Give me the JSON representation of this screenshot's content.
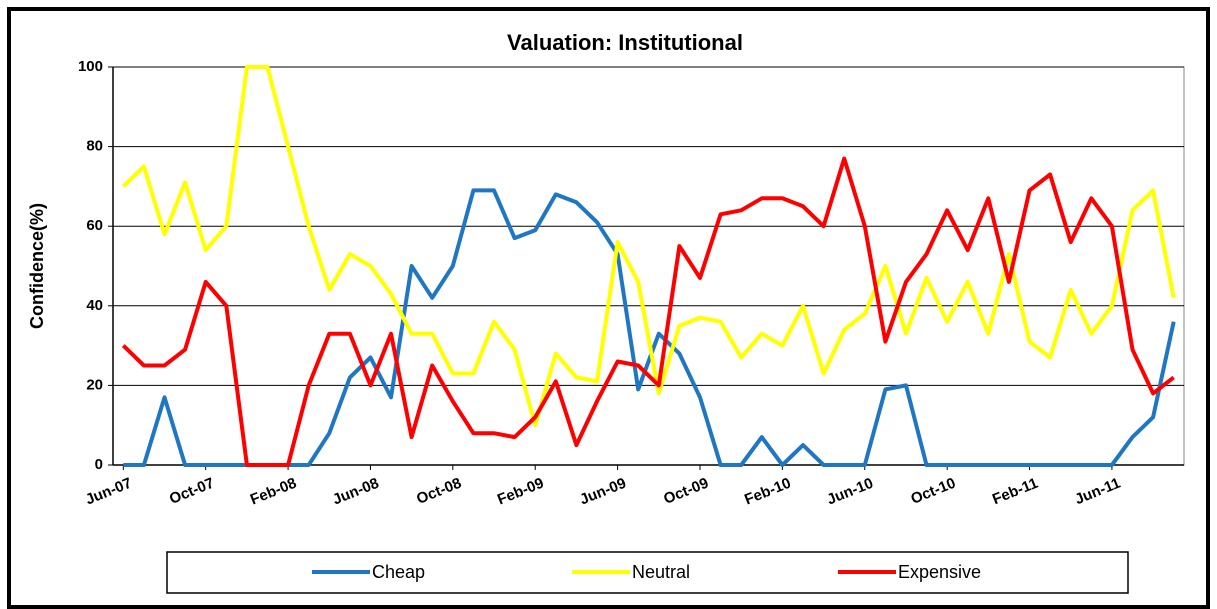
{
  "chart_data": {
    "type": "line",
    "title": "Valuation: Institutional",
    "y_label": "Confidence(%)",
    "categories": [
      "Jun-07",
      null,
      null,
      null,
      "Oct-07",
      null,
      null,
      null,
      "Feb-08",
      null,
      null,
      null,
      "Jun-08",
      null,
      null,
      null,
      "Oct-08",
      null,
      null,
      null,
      "Feb-09",
      null,
      null,
      null,
      "Jun-09",
      null,
      null,
      null,
      "Oct-09",
      null,
      null,
      null,
      "Feb-10",
      null,
      null,
      null,
      "Jun-10",
      null,
      null,
      null,
      "Oct-10",
      null,
      null,
      null,
      "Feb-11",
      null,
      null,
      null,
      "Jun-11",
      null,
      null,
      null
    ],
    "series": [
      {
        "name": "Cheap",
        "color": "#1f77c4",
        "values": [
          0,
          0,
          17,
          0,
          0,
          0,
          0,
          0,
          0,
          0,
          8,
          22,
          27,
          17,
          50,
          42,
          50,
          69,
          69,
          57,
          59,
          68,
          66,
          61,
          53,
          19,
          33,
          28,
          17,
          0,
          0,
          7,
          0,
          5,
          0,
          0,
          0,
          19,
          20,
          0,
          0,
          0,
          0,
          0,
          0,
          0,
          0,
          0,
          0,
          7,
          12,
          36
        ]
      },
      {
        "name": "Neutral",
        "color": "#ffff00",
        "values": [
          70,
          75,
          58,
          71,
          54,
          60,
          100,
          100,
          80,
          60,
          44,
          53,
          50,
          43,
          33,
          33,
          23,
          23,
          36,
          29,
          10,
          28,
          22,
          21,
          56,
          46,
          18,
          35,
          37,
          36,
          27,
          33,
          30,
          40,
          23,
          34,
          38,
          50,
          33,
          47,
          36,
          46,
          33,
          53,
          31,
          27,
          44,
          33,
          40,
          64,
          69,
          42
        ]
      },
      {
        "name": "Expensive",
        "color": "#ff0000",
        "values": [
          30,
          25,
          25,
          29,
          46,
          40,
          0,
          0,
          0,
          20,
          33,
          33,
          20,
          33,
          7,
          25,
          16,
          8,
          8,
          7,
          12,
          21,
          5,
          16,
          26,
          25,
          20,
          55,
          47,
          63,
          64,
          67,
          67,
          65,
          60,
          77,
          60,
          31,
          46,
          53,
          64,
          54,
          67,
          46,
          69,
          73,
          56,
          67,
          60,
          29,
          18,
          22
        ]
      }
    ],
    "ylim": [
      0,
      100
    ],
    "yticks": [
      0,
      20,
      40,
      60,
      80,
      100
    ],
    "grid": true,
    "legend": "bottom"
  }
}
